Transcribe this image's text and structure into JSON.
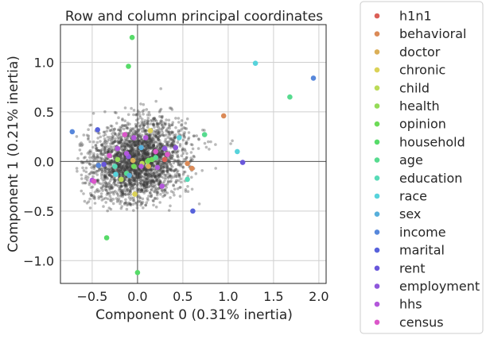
{
  "chart_data": {
    "type": "scatter",
    "title": "Row and column principal coordinates",
    "xlabel": "Component 0 (0.31% inertia)",
    "ylabel": "Component 1 (0.21% inertia)",
    "xlim": [
      -0.85,
      2.08
    ],
    "ylim": [
      -1.23,
      1.38
    ],
    "x_ticks": [
      -0.5,
      0.0,
      0.5,
      1.0,
      1.5,
      2.0
    ],
    "x_tick_labels": [
      "−0.5",
      "0.0",
      "0.5",
      "1.0",
      "1.5",
      "2.0"
    ],
    "y_ticks": [
      -1.0,
      -0.5,
      0.0,
      0.5,
      1.0
    ],
    "y_tick_labels": [
      "−1.0",
      "−0.5",
      "0.0",
      "0.5",
      "1.0"
    ],
    "grid": true,
    "origin_lines": true,
    "legend_placement": "outside-right",
    "row_points": {
      "description_color": "#3a3a3a",
      "cloud_center": [
        0.0,
        0.0
      ],
      "cloud_x_range": [
        -0.7,
        1.2
      ],
      "cloud_y_range": [
        -0.5,
        0.85
      ]
    },
    "series": [
      {
        "name": "h1n1",
        "color": "#db5f57",
        "points": [
          [
            0.3,
            0.02
          ]
        ]
      },
      {
        "name": "behavioral",
        "color": "#db8a57",
        "points": [
          [
            0.95,
            0.46
          ],
          [
            0.6,
            -0.07
          ],
          [
            0.55,
            -0.02
          ]
        ]
      },
      {
        "name": "doctor",
        "color": "#dbaf57",
        "points": [
          [
            0.12,
            -0.05
          ],
          [
            -0.05,
            0.01
          ]
        ]
      },
      {
        "name": "chronic",
        "color": "#dbd257",
        "points": [
          [
            0.14,
            0.31
          ],
          [
            -0.03,
            -0.33
          ]
        ]
      },
      {
        "name": "child",
        "color": "#bbdb57",
        "points": [
          [
            -0.18,
            -0.18
          ],
          [
            0.05,
            -0.02
          ]
        ]
      },
      {
        "name": "health",
        "color": "#94db57",
        "points": [
          [
            -0.22,
            0.02
          ],
          [
            0.11,
            0.0
          ]
        ]
      },
      {
        "name": "opinion",
        "color": "#6ddb57",
        "points": [
          [
            0.12,
            0.01
          ],
          [
            -0.04,
            -0.05
          ],
          [
            0.16,
            0.02
          ],
          [
            0.22,
            -0.06
          ]
        ]
      },
      {
        "name": "household",
        "color": "#57db69",
        "points": [
          [
            -0.06,
            1.25
          ],
          [
            -0.1,
            0.96
          ],
          [
            -0.34,
            -0.77
          ],
          [
            0.0,
            -1.12
          ]
        ]
      },
      {
        "name": "age",
        "color": "#57db8f",
        "points": [
          [
            0.74,
            0.27
          ],
          [
            1.68,
            0.65
          ],
          [
            -0.12,
            -0.12
          ],
          [
            0.2,
            0.04
          ]
        ]
      },
      {
        "name": "education",
        "color": "#57dbb7",
        "points": [
          [
            0.55,
            -0.18
          ],
          [
            -0.25,
            -0.05
          ]
        ]
      },
      {
        "name": "race",
        "color": "#57d3db",
        "points": [
          [
            1.3,
            0.99
          ],
          [
            1.1,
            0.1
          ],
          [
            -0.24,
            -0.13
          ],
          [
            0.46,
            0.24
          ]
        ]
      },
      {
        "name": "sex",
        "color": "#57afdb",
        "points": [
          [
            0.04,
            0.14
          ],
          [
            -0.09,
            -0.14
          ]
        ]
      },
      {
        "name": "income",
        "color": "#5787db",
        "points": [
          [
            1.94,
            0.84
          ],
          [
            -0.72,
            0.3
          ],
          [
            -0.43,
            -0.04
          ]
        ]
      },
      {
        "name": "marital",
        "color": "#5762db",
        "points": [
          [
            -0.44,
            0.32
          ],
          [
            0.61,
            -0.5
          ]
        ]
      },
      {
        "name": "rent",
        "color": "#6957db",
        "points": [
          [
            1.16,
            -0.01
          ],
          [
            -0.37,
            -0.03
          ]
        ]
      },
      {
        "name": "employment",
        "color": "#8e57db",
        "points": [
          [
            -0.1,
            0.05
          ],
          [
            0.3,
            0.13
          ],
          [
            0.42,
            0.14
          ]
        ]
      },
      {
        "name": "hhs",
        "color": "#b357db",
        "points": [
          [
            -0.5,
            -0.19
          ],
          [
            -0.22,
            0.13
          ],
          [
            0.22,
            -0.06
          ],
          [
            -0.12,
            0.08
          ],
          [
            0.04,
            -0.05
          ],
          [
            0.27,
            -0.25
          ],
          [
            -0.04,
            0.24
          ],
          [
            0.09,
            0.24
          ]
        ]
      },
      {
        "name": "census",
        "color": "#db57c9",
        "points": [
          [
            -0.14,
            0.27
          ],
          [
            0.2,
            0.1
          ],
          [
            -0.31,
            0.06
          ],
          [
            0.33,
            0.07
          ],
          [
            -0.48,
            -0.2
          ]
        ]
      }
    ]
  }
}
